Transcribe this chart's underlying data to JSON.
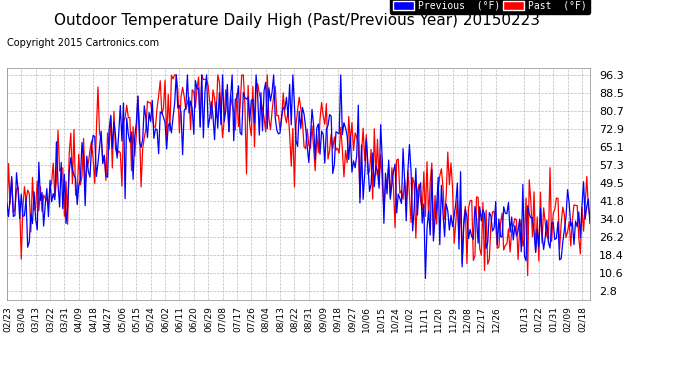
{
  "title": "Outdoor Temperature Daily High (Past/Previous Year) 20150223",
  "copyright": "Copyright 2015 Cartronics.com",
  "legend_previous_label": "Previous  (°F)",
  "legend_past_label": "Past  (°F)",
  "legend_previous_color": "#0000ff",
  "legend_past_color": "#ff0000",
  "ytick_values": [
    2.8,
    10.6,
    18.4,
    26.2,
    34.0,
    41.8,
    49.5,
    57.3,
    65.1,
    72.9,
    80.7,
    88.5,
    96.3
  ],
  "ytick_labels": [
    "2.8",
    "10.6",
    "18.4",
    "26.2",
    "34.0",
    "41.8",
    "49.5",
    "57.3",
    "65.1",
    "72.9",
    "80.7",
    "88.5",
    "96.3"
  ],
  "ylim": [
    -1.0,
    99.5
  ],
  "x_labels": [
    "02/23",
    "03/04",
    "03/13",
    "03/22",
    "03/31",
    "04/09",
    "04/18",
    "04/27",
    "05/06",
    "05/15",
    "05/24",
    "06/02",
    "06/11",
    "06/20",
    "06/29",
    "07/08",
    "07/17",
    "07/26",
    "08/04",
    "08/13",
    "08/22",
    "08/31",
    "09/09",
    "09/18",
    "09/27",
    "10/06",
    "10/15",
    "10/24",
    "11/02",
    "11/11",
    "11/20",
    "11/29",
    "12/08",
    "12/17",
    "12/26",
    "01/13",
    "01/22",
    "01/31",
    "02/09",
    "02/18"
  ],
  "plot_bg_color": "#ffffff",
  "fig_bg_color": "#ffffff",
  "grid_color": "#aaaaaa",
  "title_fontsize": 11,
  "copyright_fontsize": 7,
  "tick_fontsize": 8,
  "xtick_fontsize": 6.5,
  "line_width": 0.9,
  "figsize": [
    6.9,
    3.75
  ],
  "dpi": 100
}
